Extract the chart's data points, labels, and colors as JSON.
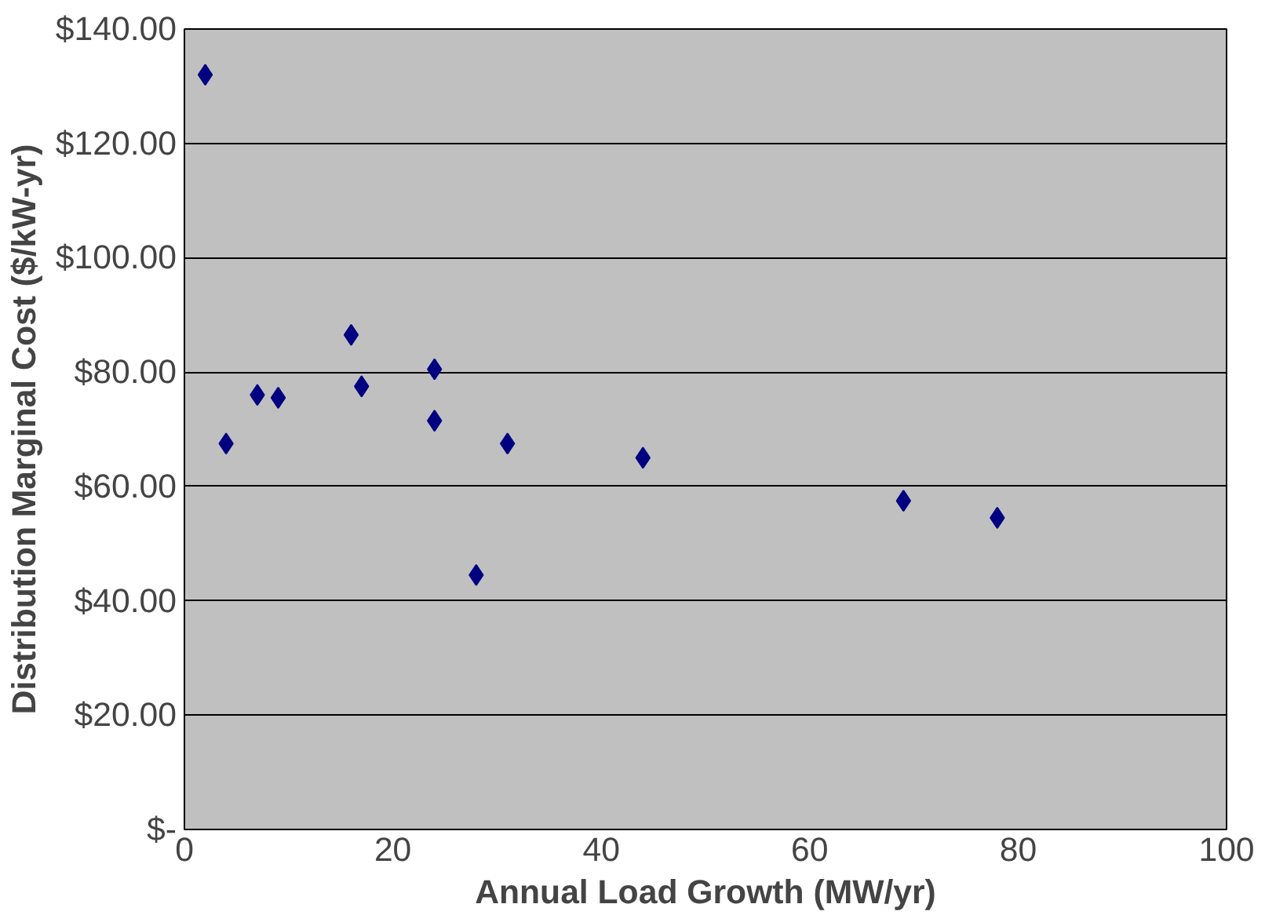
{
  "chart_data": {
    "type": "scatter",
    "xlabel": "Annual Load Growth (MW/yr)",
    "ylabel": "Distribution Marginal Cost ($/kW-yr)",
    "x": [
      2,
      4,
      7,
      9,
      16,
      17,
      24,
      24,
      31,
      28,
      44,
      69,
      78
    ],
    "series": [
      {
        "color": "#000080",
        "values": [
          132,
          67.5,
          76,
          75.5,
          86.5,
          77.5,
          80.5,
          71.5,
          67.5,
          44.5,
          65,
          57.5,
          54.5
        ]
      }
    ],
    "xlim": [
      0,
      100
    ],
    "xticks": [
      0,
      20,
      40,
      60,
      80,
      100
    ],
    "ylim": [
      0,
      140
    ],
    "yticks": [
      {
        "value": 0,
        "label": "$-"
      },
      {
        "value": 20,
        "label": "$20.00"
      },
      {
        "value": 40,
        "label": "$40.00"
      },
      {
        "value": 60,
        "label": "$60.00"
      },
      {
        "value": 80,
        "label": "$80.00"
      },
      {
        "value": 100,
        "label": "$100.00"
      },
      {
        "value": 120,
        "label": "$120.00"
      },
      {
        "value": 140,
        "label": "$140.00"
      }
    ],
    "grid": "y",
    "marker": "diamond"
  }
}
